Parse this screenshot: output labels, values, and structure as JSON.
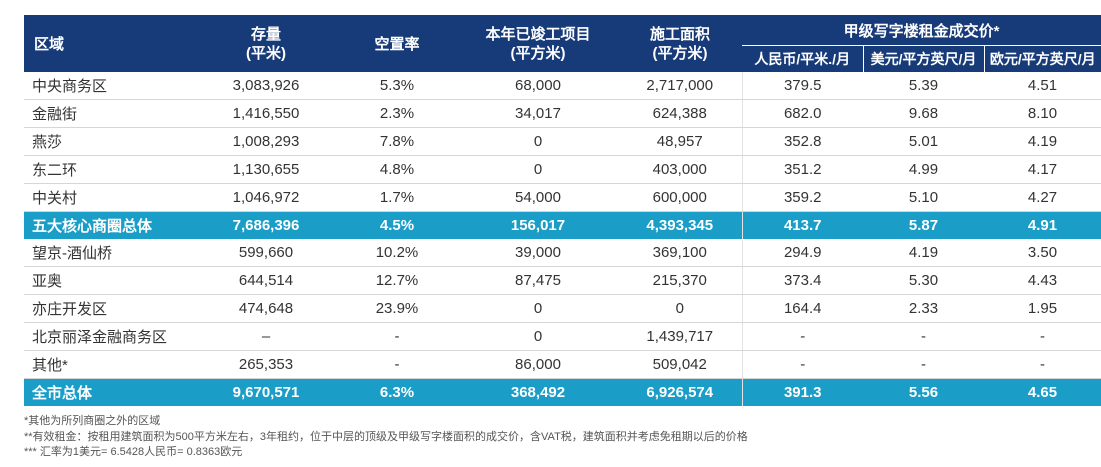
{
  "colors": {
    "header": "#173a78",
    "total_row": "#1a9ec8"
  },
  "header": {
    "region": "区域",
    "stock": [
      "存量",
      "(平米)"
    ],
    "vacancy": "空置率",
    "completed": [
      "本年已竣工项目",
      "(平方米)"
    ],
    "construction": [
      "施工面积",
      "(平方米)"
    ],
    "rent_group": "甲级写字楼租金成交价*",
    "rent_cols": [
      "人民币/平米./月",
      "美元/平方英尺/月",
      "欧元/平方英尺/月"
    ]
  },
  "rows": [
    {
      "region": "中央商务区",
      "stock": "3,083,926",
      "vacancy": "5.3%",
      "completed": "68,000",
      "construction": "2,717,000",
      "rmb": "379.5",
      "usd": "5.39",
      "eur": "4.51",
      "total": false
    },
    {
      "region": "金融街",
      "stock": "1,416,550",
      "vacancy": "2.3%",
      "completed": "34,017",
      "construction": "624,388",
      "rmb": "682.0",
      "usd": "9.68",
      "eur": "8.10",
      "total": false
    },
    {
      "region": "燕莎",
      "stock": "1,008,293",
      "vacancy": "7.8%",
      "completed": "0",
      "construction": "48,957",
      "rmb": "352.8",
      "usd": "5.01",
      "eur": "4.19",
      "total": false
    },
    {
      "region": "东二环",
      "stock": "1,130,655",
      "vacancy": "4.8%",
      "completed": "0",
      "construction": "403,000",
      "rmb": "351.2",
      "usd": "4.99",
      "eur": "4.17",
      "total": false
    },
    {
      "region": "中关村",
      "stock": "1,046,972",
      "vacancy": "1.7%",
      "completed": "54,000",
      "construction": "600,000",
      "rmb": "359.2",
      "usd": "5.10",
      "eur": "4.27",
      "total": false
    },
    {
      "region": "五大核心商圈总体",
      "stock": "7,686,396",
      "vacancy": "4.5%",
      "completed": "156,017",
      "construction": "4,393,345",
      "rmb": "413.7",
      "usd": "5.87",
      "eur": "4.91",
      "total": true
    },
    {
      "region": "望京-酒仙桥",
      "stock": "599,660",
      "vacancy": "10.2%",
      "completed": "39,000",
      "construction": "369,100",
      "rmb": "294.9",
      "usd": "4.19",
      "eur": "3.50",
      "total": false
    },
    {
      "region": "亚奥",
      "stock": "644,514",
      "vacancy": "12.7%",
      "completed": "87,475",
      "construction": "215,370",
      "rmb": "373.4",
      "usd": "5.30",
      "eur": "4.43",
      "total": false
    },
    {
      "region": "亦庄开发区",
      "stock": "474,648",
      "vacancy": "23.9%",
      "completed": "0",
      "construction": "0",
      "rmb": "164.4",
      "usd": "2.33",
      "eur": "1.95",
      "total": false
    },
    {
      "region": "北京丽泽金融商务区",
      "stock": "–",
      "vacancy": "-",
      "completed": "0",
      "construction": "1,439,717",
      "rmb": "-",
      "usd": "-",
      "eur": "-",
      "total": false
    },
    {
      "region": "其他*",
      "stock": "265,353",
      "vacancy": "-",
      "completed": "86,000",
      "construction": "509,042",
      "rmb": "-",
      "usd": "-",
      "eur": "-",
      "total": false
    },
    {
      "region": "全市总体",
      "stock": "9,670,571",
      "vacancy": "6.3%",
      "completed": "368,492",
      "construction": "6,926,574",
      "rmb": "391.3",
      "usd": "5.56",
      "eur": "4.65",
      "total": true
    }
  ],
  "notes": [
    "*其他为所列商圈之外的区域",
    "**有效租金：按租用建筑面积为500平方米左右，3年租约，位于中层的顶级及甲级写字楼面积的成交价，含VAT税，建筑面积并考虑免租期以后的价格",
    "*** 汇率为1美元= 6.5428人民币= 0.8363欧元"
  ]
}
